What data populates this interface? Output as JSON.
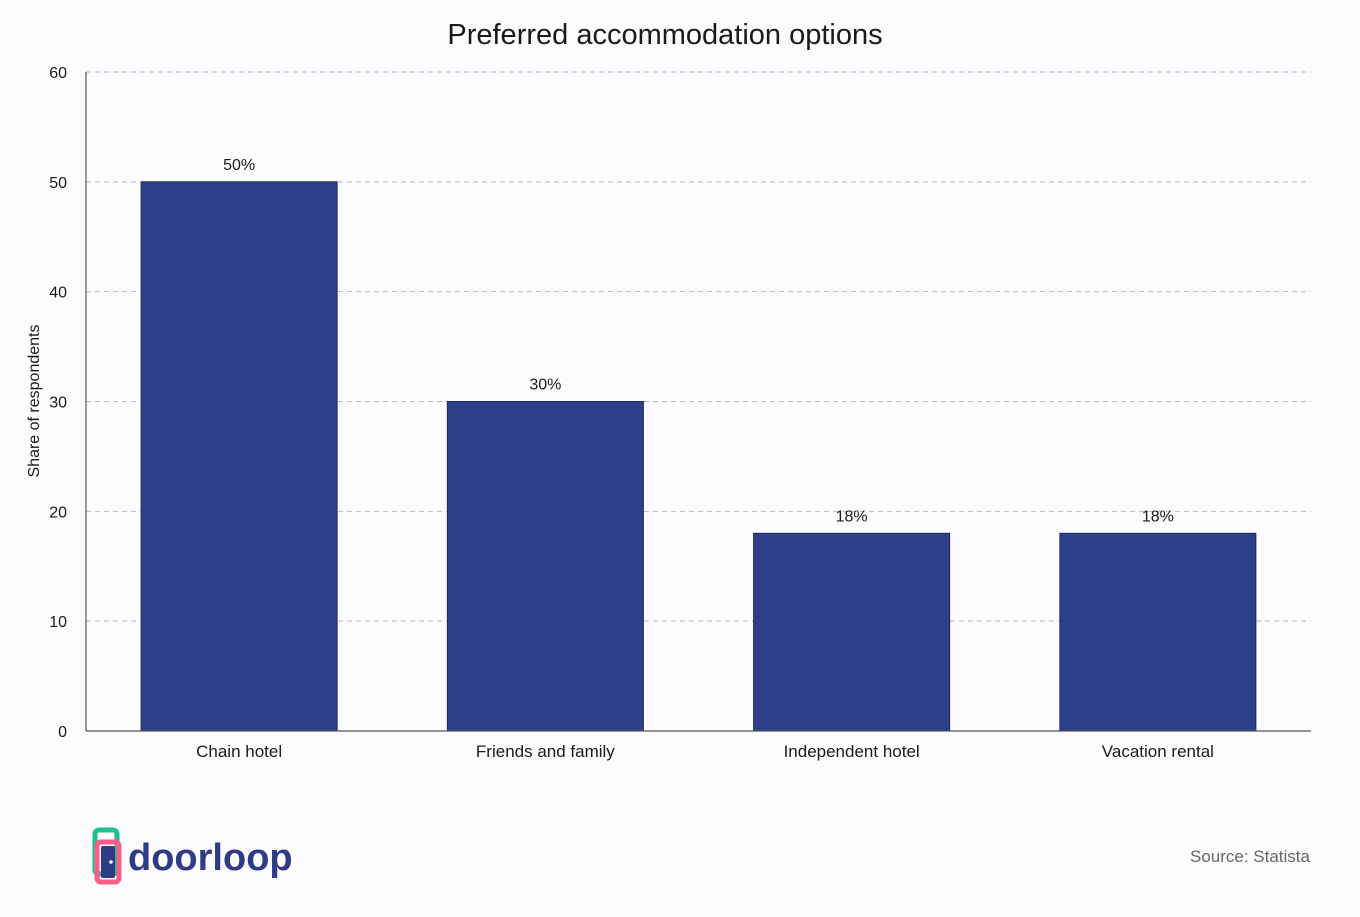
{
  "chart_data": {
    "type": "bar",
    "title": "Preferred accommodation options",
    "xlabel": "",
    "ylabel": "Share of respondents",
    "categories": [
      "Chain hotel",
      "Friends and family",
      "Independent hotel",
      "Vacation rental"
    ],
    "values": [
      50,
      30,
      18,
      18
    ],
    "data_labels": [
      "50%",
      "30%",
      "18%",
      "18%"
    ],
    "ylim": [
      0,
      60
    ],
    "yticks": [
      0,
      10,
      20,
      30,
      40,
      50,
      60
    ],
    "grid": true,
    "bar_color": "#2e3f89"
  },
  "branding": {
    "logo_text": "doorloop",
    "source": "Source: Statista"
  },
  "colors": {
    "logo_green": "#1fbf8f",
    "logo_pink": "#ff5c8a",
    "logo_navy": "#2f3b84"
  }
}
